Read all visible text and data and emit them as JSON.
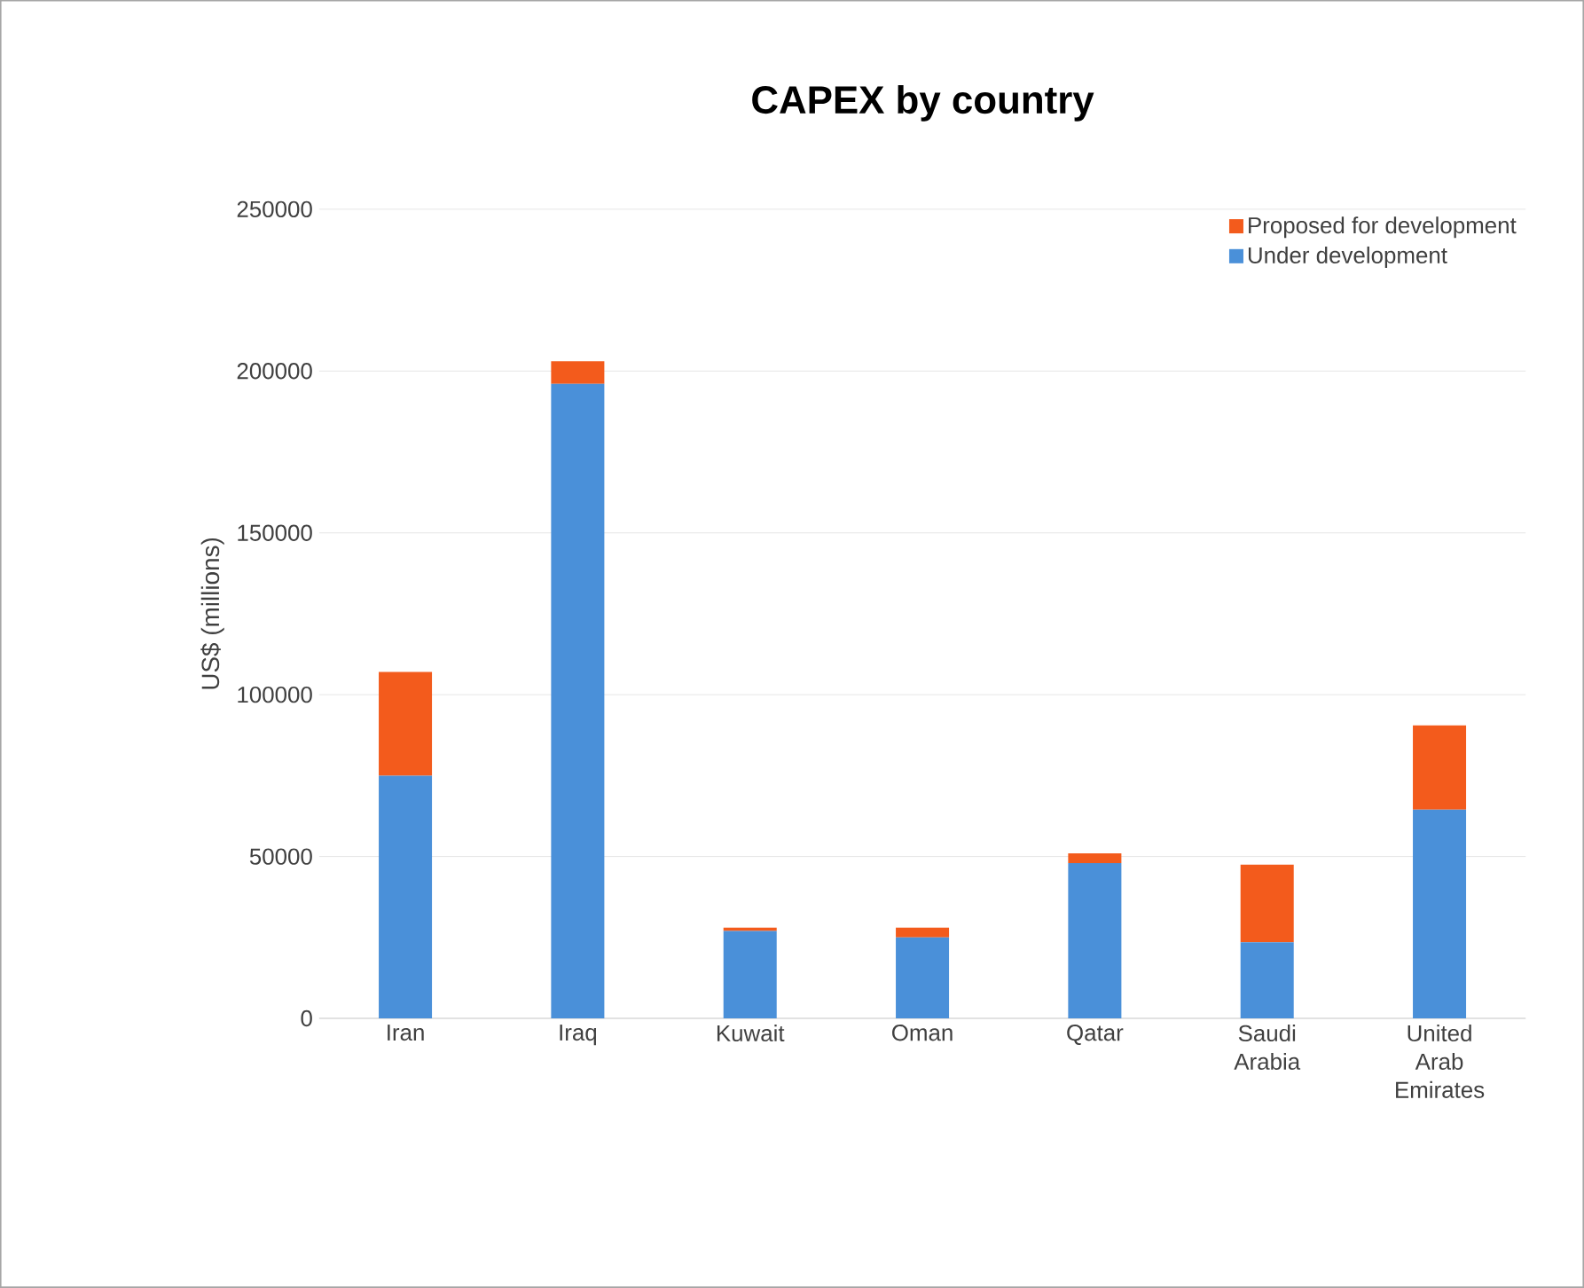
{
  "chart_data": {
    "type": "bar",
    "title": "CAPEX by country",
    "ylabel": "US$ (millions)",
    "categories": [
      "Iran",
      "Iraq",
      "Kuwait",
      "Oman",
      "Qatar",
      "Saudi Arabia",
      "United Arab Emirates"
    ],
    "stacked": true,
    "series": [
      {
        "name": "Under development",
        "color": "#4a90d9",
        "values": [
          75000,
          196000,
          27000,
          25000,
          48000,
          23500,
          64500
        ]
      },
      {
        "name": "Proposed for development",
        "color": "#f35b1c",
        "values": [
          32000,
          7000,
          1000,
          3000,
          3000,
          24000,
          26000
        ]
      }
    ],
    "ylim": [
      0,
      250000
    ],
    "yticks": [
      0,
      50000,
      100000,
      150000,
      200000,
      250000
    ],
    "grid": "y",
    "legend": "top right"
  }
}
